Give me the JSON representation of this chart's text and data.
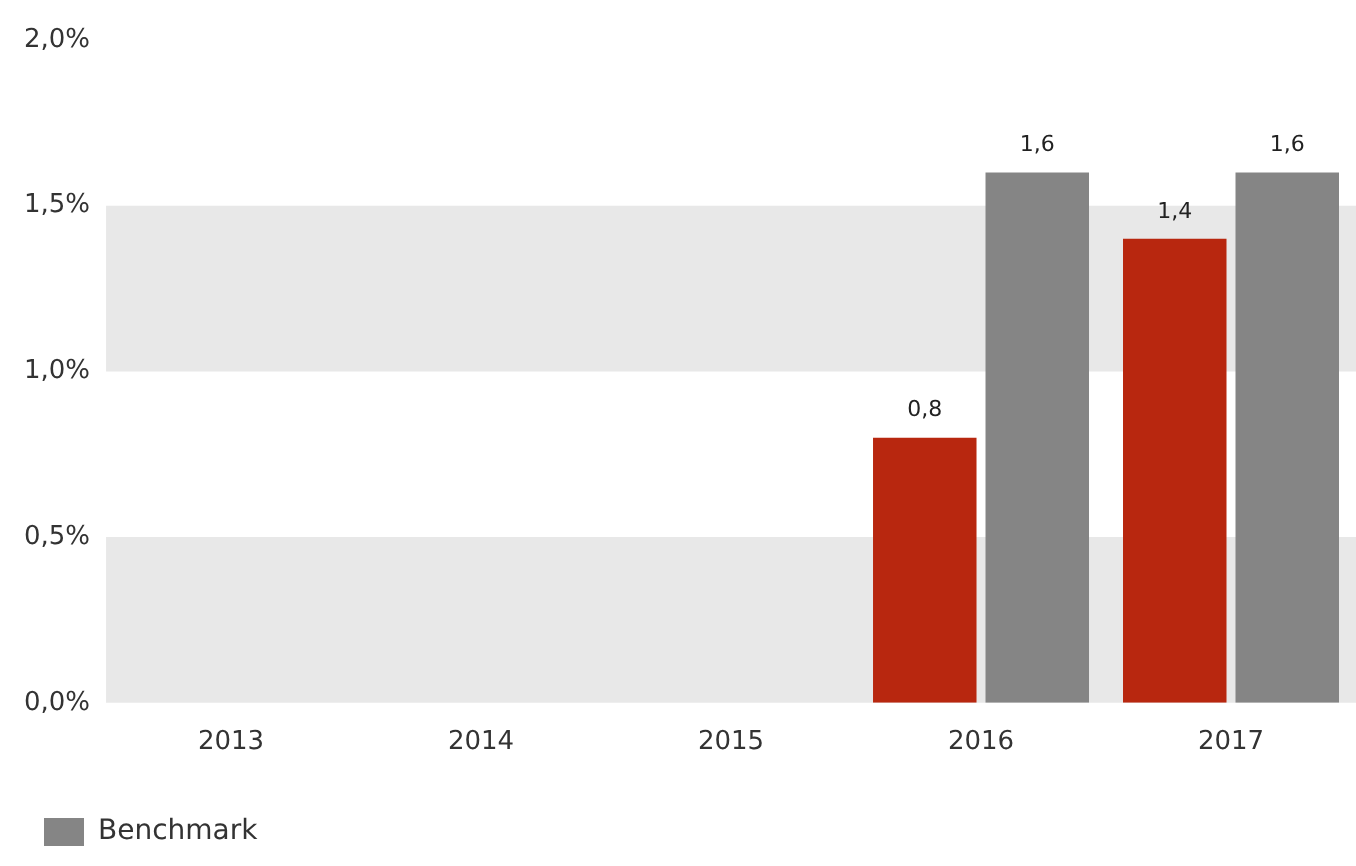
{
  "chart_data": {
    "type": "bar",
    "categories": [
      "2013",
      "2014",
      "2015",
      "2016",
      "2017"
    ],
    "series": [
      {
        "color": "#b8270f",
        "values": [
          null,
          null,
          null,
          0.8,
          1.4
        ],
        "value_labels": [
          null,
          null,
          null,
          "0,8",
          "1,4"
        ]
      },
      {
        "name": "Benchmark",
        "color": "#858585",
        "values": [
          null,
          null,
          null,
          1.6,
          1.6
        ],
        "value_labels": [
          null,
          null,
          null,
          "1,6",
          "1,6"
        ]
      }
    ],
    "ylim": [
      0,
      2
    ],
    "yticks": [
      {
        "value": 0,
        "label": "0,0%"
      },
      {
        "value": 0.5,
        "label": "0,5%"
      },
      {
        "value": 1,
        "label": "1,0%"
      },
      {
        "value": 1.5,
        "label": "1,5%"
      },
      {
        "value": 2,
        "label": "2,0%"
      }
    ],
    "bands": [
      {
        "axis": "y",
        "from": 0,
        "to": 0.5,
        "color": "#e8e8e8"
      },
      {
        "axis": "y",
        "from": 1,
        "to": 1.5,
        "color": "#e8e8e8"
      }
    ],
    "grid": false,
    "legend": "bottom left"
  }
}
